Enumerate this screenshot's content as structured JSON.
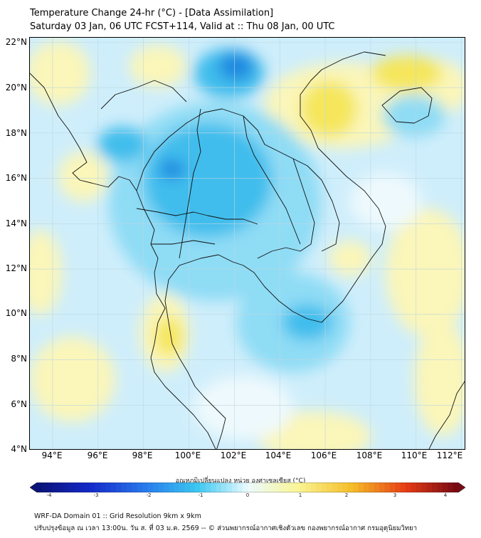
{
  "title": {
    "line1": "Temperature Change 24-hr (°C) - [Data Assimilation]",
    "line2": "Saturday 03 Jan, 06 UTC FCST+114, Valid at :: Thu 08 Jan, 00 UTC"
  },
  "map": {
    "lat_labels": [
      "22°N",
      "20°N",
      "18°N",
      "16°N",
      "14°N",
      "12°N",
      "10°N",
      "8°N",
      "6°N",
      "4°N"
    ],
    "lon_labels": [
      "94°E",
      "96°E",
      "98°E",
      "100°E",
      "102°E",
      "104°E",
      "106°E",
      "108°E",
      "110°E",
      "112°E"
    ],
    "lat_range": [
      4,
      22.2
    ],
    "lon_range": [
      93,
      112.2
    ],
    "colors": {
      "background": "#cfeefb",
      "cooling_light": "#8fdcf5",
      "cooling_mid": "#3fbdec",
      "cooling_strong": "#1f88e0",
      "warming_light": "#fbf6b9",
      "warming_mid": "#f5e65c",
      "neutral": "#eef9fd"
    }
  },
  "colorbar": {
    "title": "อุณหภูมิเปลี่ยนแปลง หน่วย องศาเซลเซียส (°C)",
    "ticks": [
      "-4",
      "-3",
      "-2",
      "-1",
      "0",
      "1",
      "2",
      "3",
      "4"
    ],
    "range": [
      -4,
      4
    ]
  },
  "footer": {
    "line1": "WRF-DA Domain 01 :: Grid Resolution 9km x 9km",
    "line2": "ปรับปรุงข้อมูล ณ เวลา 13:00น. วัน ส. ที่ 03 ม.ค. 2569 -- © ส่วนพยากรณ์อากาศเชิงตัวเลข กองพยากรณ์อากาศ กรมอุตุนิยมวิทยา"
  }
}
